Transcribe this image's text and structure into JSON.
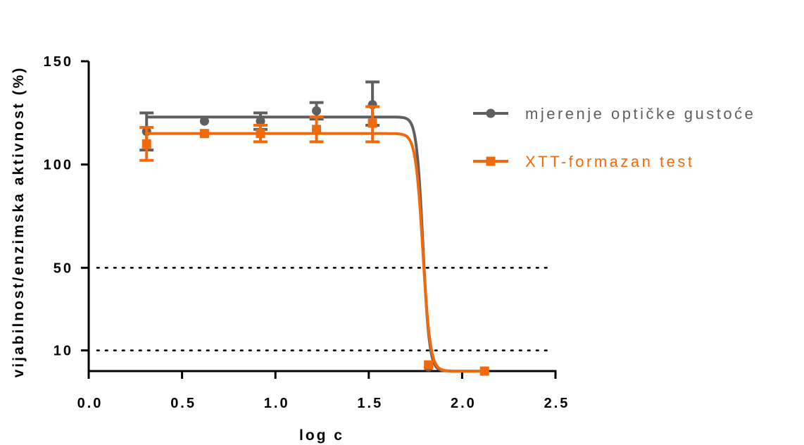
{
  "chart_data": {
    "type": "line",
    "title": "",
    "xlabel": "log c",
    "ylabel": "vijabilnost/enzimska aktivnost (%)",
    "xlim": [
      0.0,
      2.5
    ],
    "ylim": [
      0,
      150
    ],
    "x_ticks": [
      "0.0",
      "0.5",
      "1.0",
      "1.5",
      "2.0",
      "2.5"
    ],
    "y_ticks": [
      "10",
      "50",
      "100",
      "150"
    ],
    "reference_lines": [
      50,
      10
    ],
    "legend_position": "right",
    "series": [
      {
        "name": "mjerenje optičke gustoće",
        "color": "#5f5f5f",
        "marker": "circle",
        "x": [
          0.31,
          0.62,
          0.92,
          1.22,
          1.52,
          1.82,
          2.12
        ],
        "y": [
          116,
          121,
          121,
          126,
          129,
          2,
          0
        ],
        "err_low": [
          107,
          121,
          117,
          122,
          119,
          2,
          0
        ],
        "err_high": [
          125,
          121,
          125,
          130,
          140,
          2,
          0
        ],
        "fit": {
          "top": 123,
          "bottom": 0,
          "logEC50": 1.79,
          "hill": -25
        }
      },
      {
        "name": "XTT-formazan test",
        "color": "#f06a0c",
        "marker": "square",
        "x": [
          0.31,
          0.62,
          0.92,
          1.22,
          1.52,
          1.82,
          2.12
        ],
        "y": [
          110,
          115,
          115,
          117,
          120,
          3,
          0
        ],
        "err_low": [
          102,
          115,
          111,
          111,
          111,
          3,
          0
        ],
        "err_high": [
          118,
          115,
          119,
          123,
          128,
          3,
          0
        ],
        "fit": {
          "top": 115,
          "bottom": 0,
          "logEC50": 1.79,
          "hill": -22
        }
      }
    ]
  }
}
